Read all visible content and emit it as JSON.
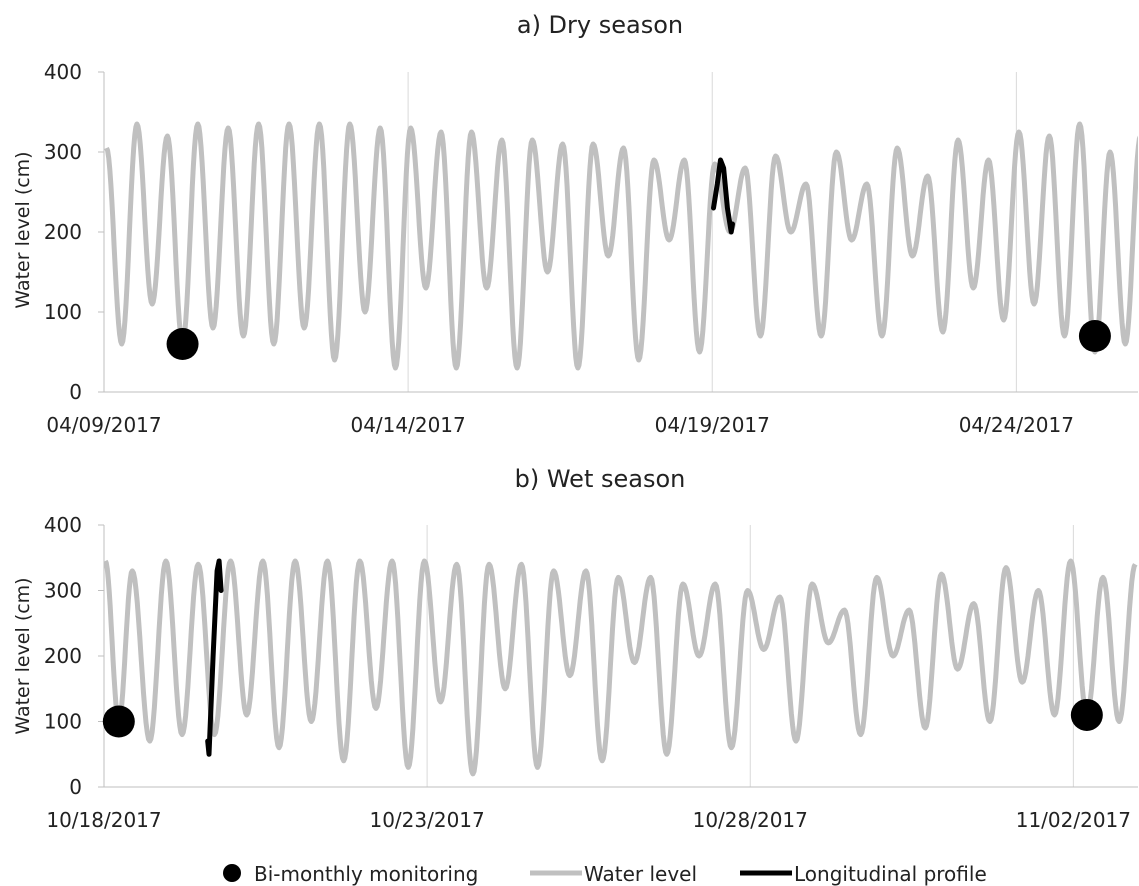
{
  "chart_data": [
    {
      "type": "line",
      "title": "a) Dry season",
      "ylabel": "Water level (cm)",
      "ylim": [
        0,
        400
      ],
      "yticks": [
        "0",
        "100",
        "200",
        "300",
        "400"
      ],
      "xlim": [
        "04/09/2017",
        "04/26/2017"
      ],
      "xticks": [
        "04/09/2017",
        "04/14/2017",
        "04/19/2017",
        "04/24/2017"
      ],
      "grid": "vertical",
      "water_level": {
        "name": "Water level",
        "peaks": [
          [
            "04/09/2017 01:00",
            305
          ],
          [
            "04/09/2017 07:00",
            60
          ],
          [
            "04/09/2017 13:00",
            335
          ],
          [
            "04/09/2017 19:00",
            110
          ],
          [
            "04/10/2017 01:00",
            320
          ],
          [
            "04/10/2017 07:00",
            60
          ],
          [
            "04/10/2017 13:00",
            335
          ],
          [
            "04/10/2017 19:00",
            80
          ],
          [
            "04/11/2017 01:00",
            330
          ],
          [
            "04/11/2017 07:00",
            70
          ],
          [
            "04/11/2017 13:00",
            335
          ],
          [
            "04/11/2017 19:00",
            60
          ],
          [
            "04/12/2017 01:00",
            335
          ],
          [
            "04/12/2017 07:00",
            80
          ],
          [
            "04/12/2017 13:00",
            335
          ],
          [
            "04/12/2017 19:00",
            40
          ],
          [
            "04/13/2017 01:00",
            335
          ],
          [
            "04/13/2017 07:00",
            100
          ],
          [
            "04/13/2017 13:00",
            330
          ],
          [
            "04/13/2017 19:00",
            30
          ],
          [
            "04/14/2017 01:00",
            330
          ],
          [
            "04/14/2017 07:00",
            130
          ],
          [
            "04/14/2017 13:00",
            325
          ],
          [
            "04/14/2017 19:00",
            30
          ],
          [
            "04/15/2017 01:00",
            325
          ],
          [
            "04/15/2017 07:00",
            130
          ],
          [
            "04/15/2017 13:00",
            315
          ],
          [
            "04/15/2017 19:00",
            30
          ],
          [
            "04/16/2017 01:00",
            315
          ],
          [
            "04/16/2017 07:00",
            150
          ],
          [
            "04/16/2017 13:00",
            310
          ],
          [
            "04/16/2017 19:00",
            30
          ],
          [
            "04/17/2017 01:00",
            310
          ],
          [
            "04/17/2017 07:00",
            170
          ],
          [
            "04/17/2017 13:00",
            305
          ],
          [
            "04/17/2017 19:00",
            40
          ],
          [
            "04/18/2017 01:00",
            290
          ],
          [
            "04/18/2017 07:00",
            190
          ],
          [
            "04/18/2017 13:00",
            290
          ],
          [
            "04/18/2017 19:00",
            50
          ],
          [
            "04/19/2017 01:00",
            285
          ],
          [
            "04/19/2017 07:00",
            200
          ],
          [
            "04/19/2017 13:00",
            280
          ],
          [
            "04/19/2017 19:00",
            70
          ],
          [
            "04/20/2017 01:00",
            295
          ],
          [
            "04/20/2017 07:00",
            200
          ],
          [
            "04/20/2017 13:00",
            260
          ],
          [
            "04/20/2017 19:00",
            70
          ],
          [
            "04/21/2017 01:00",
            300
          ],
          [
            "04/21/2017 07:00",
            190
          ],
          [
            "04/21/2017 13:00",
            260
          ],
          [
            "04/21/2017 19:00",
            70
          ],
          [
            "04/22/2017 01:00",
            305
          ],
          [
            "04/22/2017 07:00",
            170
          ],
          [
            "04/22/2017 13:00",
            270
          ],
          [
            "04/22/2017 19:00",
            75
          ],
          [
            "04/23/2017 01:00",
            315
          ],
          [
            "04/23/2017 07:00",
            130
          ],
          [
            "04/23/2017 13:00",
            290
          ],
          [
            "04/23/2017 19:00",
            90
          ],
          [
            "04/24/2017 01:00",
            325
          ],
          [
            "04/24/2017 07:00",
            110
          ],
          [
            "04/24/2017 13:00",
            320
          ],
          [
            "04/24/2017 19:00",
            70
          ],
          [
            "04/25/2017 01:00",
            335
          ],
          [
            "04/25/2017 07:00",
            50
          ],
          [
            "04/25/2017 13:00",
            300
          ],
          [
            "04/25/2017 19:00",
            60
          ],
          [
            "04/26/2017 01:00",
            320
          ]
        ]
      },
      "longitudinal_profile": {
        "name": "Longitudinal profile",
        "points": [
          [
            "04/19/2017 00:30",
            230
          ],
          [
            "04/19/2017 02:00",
            260
          ],
          [
            "04/19/2017 03:15",
            290
          ],
          [
            "04/19/2017 04:30",
            280
          ],
          [
            "04/19/2017 06:00",
            230
          ],
          [
            "04/19/2017 07:30",
            200
          ],
          [
            "04/19/2017 08:00",
            210
          ]
        ]
      },
      "bi_monthly_monitoring": {
        "name": "Bi-monthly monitoring",
        "points": [
          [
            "04/10/2017 07:00",
            60
          ],
          [
            "04/25/2017 07:00",
            70
          ]
        ]
      }
    },
    {
      "type": "line",
      "title": "b) Wet season",
      "ylabel": "Water level (cm)",
      "ylim": [
        0,
        400
      ],
      "yticks": [
        "0",
        "100",
        "200",
        "300",
        "400"
      ],
      "xlim": [
        "10/18/2017",
        "11/03/2017"
      ],
      "xticks": [
        "10/18/2017",
        "10/23/2017",
        "10/28/2017",
        "11/02/2017"
      ],
      "grid": "vertical",
      "water_level": {
        "name": "Water level",
        "peaks": [
          [
            "10/18/2017 00:30",
            345
          ],
          [
            "10/18/2017 05:30",
            100
          ],
          [
            "10/18/2017 10:30",
            330
          ],
          [
            "10/18/2017 17:00",
            70
          ],
          [
            "10/18/2017 23:00",
            345
          ],
          [
            "10/19/2017 05:00",
            80
          ],
          [
            "10/19/2017 11:00",
            340
          ],
          [
            "10/19/2017 17:00",
            80
          ],
          [
            "10/19/2017 23:00",
            345
          ],
          [
            "10/20/2017 05:00",
            110
          ],
          [
            "10/20/2017 11:00",
            345
          ],
          [
            "10/20/2017 17:00",
            60
          ],
          [
            "10/20/2017 23:00",
            345
          ],
          [
            "10/21/2017 05:00",
            100
          ],
          [
            "10/21/2017 11:00",
            345
          ],
          [
            "10/21/2017 17:00",
            40
          ],
          [
            "10/21/2017 23:00",
            345
          ],
          [
            "10/22/2017 05:00",
            120
          ],
          [
            "10/22/2017 11:00",
            345
          ],
          [
            "10/22/2017 17:00",
            30
          ],
          [
            "10/22/2017 23:00",
            345
          ],
          [
            "10/23/2017 05:00",
            130
          ],
          [
            "10/23/2017 11:00",
            340
          ],
          [
            "10/23/2017 17:00",
            20
          ],
          [
            "10/23/2017 23:00",
            340
          ],
          [
            "10/24/2017 05:00",
            150
          ],
          [
            "10/24/2017 11:00",
            340
          ],
          [
            "10/24/2017 17:00",
            30
          ],
          [
            "10/24/2017 23:00",
            330
          ],
          [
            "10/25/2017 05:00",
            170
          ],
          [
            "10/25/2017 11:00",
            330
          ],
          [
            "10/25/2017 17:00",
            40
          ],
          [
            "10/25/2017 23:00",
            320
          ],
          [
            "10/26/2017 05:00",
            190
          ],
          [
            "10/26/2017 11:00",
            320
          ],
          [
            "10/26/2017 17:00",
            50
          ],
          [
            "10/26/2017 23:00",
            310
          ],
          [
            "10/27/2017 05:00",
            200
          ],
          [
            "10/27/2017 11:00",
            310
          ],
          [
            "10/27/2017 17:00",
            60
          ],
          [
            "10/27/2017 23:00",
            300
          ],
          [
            "10/28/2017 05:00",
            210
          ],
          [
            "10/28/2017 11:00",
            290
          ],
          [
            "10/28/2017 17:00",
            70
          ],
          [
            "10/28/2017 23:00",
            310
          ],
          [
            "10/29/2017 05:00",
            220
          ],
          [
            "10/29/2017 11:00",
            270
          ],
          [
            "10/29/2017 17:00",
            80
          ],
          [
            "10/29/2017 23:00",
            320
          ],
          [
            "10/30/2017 05:00",
            200
          ],
          [
            "10/30/2017 11:00",
            270
          ],
          [
            "10/30/2017 17:00",
            90
          ],
          [
            "10/30/2017 23:00",
            325
          ],
          [
            "10/31/2017 05:00",
            180
          ],
          [
            "10/31/2017 11:00",
            280
          ],
          [
            "10/31/2017 17:00",
            100
          ],
          [
            "10/31/2017 23:00",
            335
          ],
          [
            "11/01/2017 05:00",
            160
          ],
          [
            "11/01/2017 11:00",
            300
          ],
          [
            "11/01/2017 17:00",
            110
          ],
          [
            "11/01/2017 23:00",
            345
          ],
          [
            "11/02/2017 05:00",
            110
          ],
          [
            "11/02/2017 11:00",
            320
          ],
          [
            "11/02/2017 17:00",
            100
          ],
          [
            "11/02/2017 23:00",
            340
          ]
        ]
      },
      "longitudinal_profile": {
        "name": "Longitudinal profile",
        "points": [
          [
            "10/19/2017 14:30",
            70
          ],
          [
            "10/19/2017 15:00",
            50
          ],
          [
            "10/19/2017 16:30",
            200
          ],
          [
            "10/19/2017 18:00",
            330
          ],
          [
            "10/19/2017 18:45",
            345
          ],
          [
            "10/19/2017 19:30",
            300
          ]
        ]
      },
      "bi_monthly_monitoring": {
        "name": "Bi-monthly monitoring",
        "points": [
          [
            "10/18/2017 05:30",
            100
          ],
          [
            "11/02/2017 05:00",
            110
          ]
        ]
      }
    }
  ],
  "legend": {
    "position": "bottom",
    "items": [
      {
        "label": "Bi-monthly monitoring",
        "marker": "circle"
      },
      {
        "label": "Water level",
        "marker": "line"
      },
      {
        "label": "Longitudinal profile",
        "marker": "line"
      }
    ]
  },
  "colors": {
    "water_level": "#c0c0c0",
    "longitudinal_profile": "#000000",
    "monitoring": "#000000",
    "grid": "#d9d9d9",
    "axis": "#bfbfbf"
  }
}
